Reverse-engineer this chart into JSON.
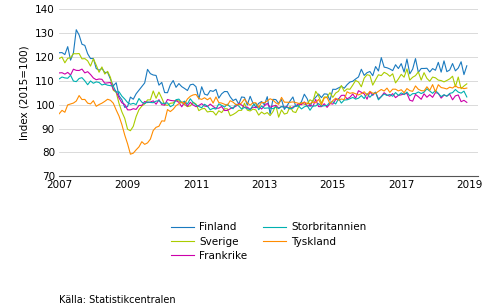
{
  "ylabel": "Index (2015=100)",
  "ylim": [
    70,
    140
  ],
  "xlim": [
    2007.0,
    2019.25
  ],
  "xticks": [
    2007,
    2009,
    2011,
    2013,
    2015,
    2017,
    2019
  ],
  "yticks": [
    70,
    80,
    90,
    100,
    110,
    120,
    130,
    140
  ],
  "source": "Källa: Statistikcentralen",
  "colors": {
    "Finland": "#1a7abf",
    "Sverige": "#aacc00",
    "Frankrike": "#cc00aa",
    "Storbritannien": "#00b0b0",
    "Tyskland": "#ff8c00"
  },
  "legend_order": [
    "Finland",
    "Sverige",
    "Frankrike",
    "Storbritannien",
    "Tyskland"
  ],
  "finland": [
    121,
    122,
    120,
    122,
    119,
    122,
    129,
    128,
    126,
    124,
    122,
    120,
    119,
    118,
    117,
    116,
    115,
    113,
    112,
    110,
    107,
    104,
    102,
    101,
    100,
    103,
    104,
    104,
    107,
    108,
    110,
    112,
    113,
    114,
    111,
    110,
    109,
    108,
    107,
    108,
    109,
    107,
    109,
    108,
    109,
    107,
    109,
    107,
    107,
    105,
    107,
    105,
    105,
    105,
    104,
    105,
    104,
    105,
    105,
    104,
    104,
    102,
    104,
    102,
    102,
    101,
    100,
    102,
    100,
    100,
    100,
    99,
    100,
    101,
    100,
    101,
    102,
    101,
    102,
    101,
    100,
    101,
    101,
    100,
    101,
    102,
    103,
    102,
    100,
    101,
    103,
    103,
    104,
    105,
    105,
    104,
    106,
    106,
    107,
    108,
    109,
    109,
    110,
    111,
    111,
    111,
    112,
    112,
    113,
    114,
    115,
    116,
    114,
    116,
    116,
    115,
    115,
    116,
    115,
    114,
    116,
    115,
    117,
    115,
    114,
    116,
    115,
    116,
    115,
    116,
    116,
    115,
    116,
    117,
    115,
    116,
    115,
    115,
    116,
    116,
    115,
    116,
    115,
    116
  ],
  "sverige": [
    119,
    119,
    119,
    121,
    119,
    121,
    121,
    121,
    120,
    119,
    118,
    117,
    117,
    116,
    115,
    115,
    114,
    113,
    110,
    107,
    104,
    100,
    96,
    92,
    90,
    90,
    92,
    96,
    98,
    99,
    100,
    101,
    102,
    104,
    103,
    102,
    102,
    101,
    101,
    100,
    101,
    101,
    101,
    101,
    101,
    101,
    100,
    100,
    100,
    99,
    98,
    98,
    98,
    97,
    97,
    97,
    97,
    96,
    97,
    97,
    97,
    97,
    96,
    97,
    97,
    96,
    97,
    96,
    97,
    97,
    96,
    96,
    97,
    97,
    96,
    97,
    97,
    97,
    97,
    98,
    97,
    98,
    97,
    98,
    100,
    100,
    101,
    100,
    102,
    102,
    103,
    103,
    103,
    103,
    104,
    104,
    104,
    105,
    105,
    107,
    107,
    107,
    107,
    109,
    108,
    109,
    109,
    110,
    110,
    111,
    110,
    111,
    111,
    113,
    113,
    112,
    113,
    113,
    113,
    112,
    113,
    113,
    113,
    112,
    112,
    112,
    112,
    112,
    112,
    111,
    111,
    111,
    111,
    111,
    110,
    110,
    110,
    110,
    110,
    109,
    109,
    109,
    108,
    108
  ],
  "frankrike": [
    113,
    114,
    113,
    114,
    113,
    114,
    114,
    115,
    114,
    113,
    113,
    112,
    112,
    111,
    110,
    110,
    109,
    109,
    108,
    107,
    105,
    103,
    101,
    99,
    97,
    97,
    97,
    98,
    99,
    100,
    101,
    101,
    101,
    101,
    101,
    100,
    101,
    101,
    101,
    101,
    101,
    101,
    101,
    100,
    101,
    100,
    100,
    100,
    100,
    100,
    100,
    100,
    100,
    100,
    99,
    99,
    99,
    99,
    99,
    99,
    99,
    99,
    99,
    99,
    99,
    99,
    99,
    99,
    99,
    99,
    99,
    99,
    99,
    99,
    99,
    99,
    99,
    99,
    99,
    99,
    99,
    99,
    99,
    99,
    99,
    99,
    99,
    100,
    99,
    99,
    100,
    100,
    100,
    101,
    101,
    101,
    101,
    102,
    102,
    102,
    103,
    103,
    104,
    104,
    104,
    104,
    104,
    105,
    104,
    104,
    104,
    104,
    104,
    104,
    105,
    104,
    104,
    104,
    104,
    104,
    104,
    104,
    104,
    103,
    103,
    103,
    103,
    103,
    103,
    103,
    103,
    103,
    103,
    103,
    103,
    103,
    103,
    103,
    103,
    103,
    103,
    103,
    103,
    103
  ],
  "storbritannien": [
    111,
    111,
    110,
    111,
    111,
    111,
    111,
    111,
    111,
    110,
    110,
    110,
    110,
    109,
    109,
    109,
    109,
    109,
    108,
    107,
    106,
    105,
    104,
    103,
    101,
    101,
    101,
    101,
    101,
    101,
    101,
    101,
    101,
    101,
    101,
    101,
    101,
    101,
    101,
    101,
    101,
    101,
    101,
    101,
    101,
    100,
    100,
    100,
    100,
    100,
    100,
    100,
    100,
    99,
    99,
    99,
    99,
    99,
    99,
    99,
    99,
    99,
    99,
    99,
    99,
    99,
    99,
    99,
    99,
    99,
    99,
    99,
    99,
    99,
    99,
    99,
    99,
    99,
    99,
    99,
    99,
    99,
    99,
    99,
    99,
    99,
    99,
    99,
    99,
    99,
    100,
    100,
    100,
    101,
    101,
    101,
    101,
    101,
    102,
    102,
    102,
    103,
    103,
    103,
    103,
    103,
    103,
    103,
    104,
    104,
    104,
    104,
    104,
    104,
    104,
    104,
    104,
    104,
    105,
    104,
    104,
    104,
    105,
    104,
    105,
    105,
    105,
    105,
    105,
    105,
    105,
    105,
    105,
    105,
    105,
    105,
    105,
    105,
    105,
    105,
    105,
    105,
    105,
    105
  ],
  "tyskland": [
    96,
    97,
    98,
    99,
    100,
    101,
    101,
    102,
    102,
    102,
    101,
    101,
    101,
    100,
    100,
    101,
    101,
    102,
    101,
    101,
    98,
    96,
    92,
    87,
    83,
    80,
    79,
    80,
    82,
    83,
    84,
    85,
    87,
    88,
    90,
    91,
    93,
    94,
    96,
    97,
    98,
    99,
    100,
    101,
    101,
    102,
    102,
    103,
    103,
    103,
    103,
    103,
    102,
    102,
    102,
    102,
    101,
    101,
    101,
    101,
    101,
    101,
    101,
    101,
    101,
    101,
    101,
    101,
    101,
    101,
    101,
    101,
    101,
    101,
    101,
    101,
    101,
    101,
    101,
    101,
    101,
    101,
    101,
    101,
    101,
    101,
    101,
    101,
    101,
    101,
    101,
    101,
    102,
    102,
    102,
    102,
    102,
    103,
    103,
    103,
    103,
    104,
    104,
    104,
    104,
    105,
    105,
    105,
    105,
    105,
    105,
    105,
    105,
    106,
    106,
    106,
    106,
    106,
    106,
    106,
    106,
    106,
    106,
    106,
    106,
    107,
    107,
    107,
    107,
    107,
    107,
    107,
    107,
    107,
    107,
    107,
    107,
    107,
    107,
    107,
    107,
    107,
    107,
    107
  ]
}
